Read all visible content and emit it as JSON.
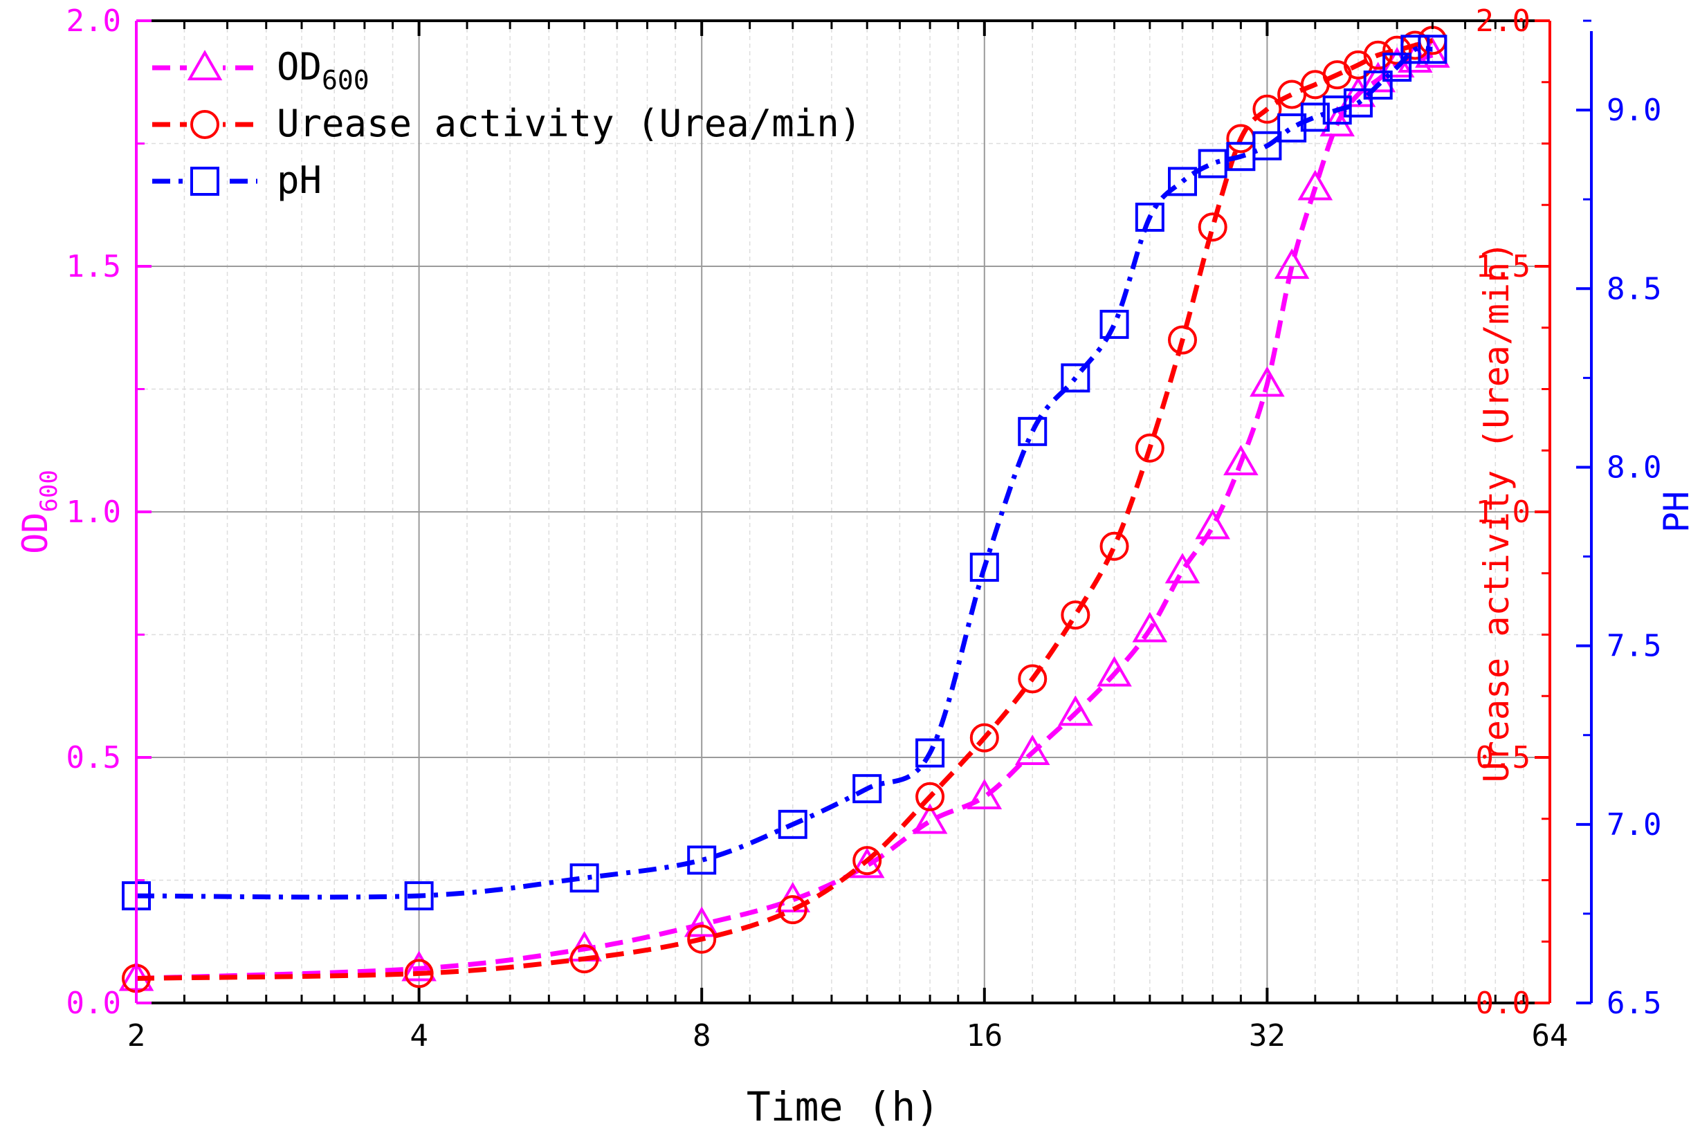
{
  "chart_data": {
    "type": "line",
    "x_scale": "log2",
    "xlabel": "Time (h)",
    "xlim": [
      2,
      64
    ],
    "x_ticks": [
      2,
      4,
      8,
      16,
      32,
      64
    ],
    "x_tick_labels": [
      "2",
      "4",
      "8",
      "16",
      "32",
      "64"
    ],
    "y_left": {
      "label": "OD",
      "label_sub": "600",
      "lim": [
        0,
        2
      ],
      "ticks": [
        0,
        0.5,
        1,
        1.5,
        2
      ],
      "tick_labels": [
        "0.0",
        "0.5",
        "1.0",
        "1.5",
        "2.0"
      ],
      "color": "#ff00ff"
    },
    "y_right1": {
      "label": "Urease activity (Urea/min)",
      "lim": [
        0,
        2
      ],
      "ticks": [
        0,
        0.5,
        1,
        1.5,
        2
      ],
      "tick_labels": [
        "0.0",
        "0.5",
        "1.0",
        "1.5",
        "2.0"
      ],
      "color": "#ff0000"
    },
    "y_right2": {
      "label": "PH",
      "lim": [
        6.5,
        9.25
      ],
      "ticks": [
        6.5,
        7,
        7.5,
        8,
        8.5,
        9
      ],
      "tick_labels": [
        "6.5",
        "7.0",
        "7.5",
        "8.0",
        "8.5",
        "9.0"
      ],
      "color": "#0000ff"
    },
    "grid": true,
    "legend_position": "top-left",
    "series": [
      {
        "name": "OD",
        "name_sub": "600",
        "axis": "y_left",
        "color": "#ff00ff",
        "marker": "triangle",
        "dash": "long-dash",
        "x": [
          2,
          4,
          6,
          8,
          10,
          12,
          14,
          16,
          18,
          20,
          22,
          24,
          26,
          28,
          30,
          32,
          34,
          36,
          38,
          40,
          42,
          44,
          46,
          48
        ],
        "y": [
          0.05,
          0.07,
          0.11,
          0.16,
          0.21,
          0.28,
          0.37,
          0.42,
          0.51,
          0.59,
          0.67,
          0.76,
          0.88,
          0.97,
          1.1,
          1.26,
          1.5,
          1.66,
          1.79,
          1.85,
          1.88,
          1.91,
          1.92,
          1.93
        ]
      },
      {
        "name": "Urease activity (Urea/min)",
        "axis": "y_right1",
        "color": "#ff0000",
        "marker": "circle",
        "dash": "long-dash",
        "x": [
          2,
          4,
          6,
          8,
          10,
          12,
          14,
          16,
          18,
          20,
          22,
          24,
          26,
          28,
          30,
          32,
          34,
          36,
          38,
          40,
          42,
          44,
          46,
          48
        ],
        "y": [
          0.05,
          0.06,
          0.09,
          0.13,
          0.19,
          0.29,
          0.42,
          0.54,
          0.66,
          0.79,
          0.93,
          1.13,
          1.35,
          1.58,
          1.76,
          1.82,
          1.85,
          1.87,
          1.89,
          1.91,
          1.93,
          1.94,
          1.95,
          1.96
        ]
      },
      {
        "name": "pH",
        "axis": "y_right2",
        "color": "#0000ff",
        "marker": "square",
        "dash": "dash-dot",
        "x": [
          2,
          4,
          6,
          8,
          10,
          12,
          14,
          16,
          18,
          20,
          22,
          24,
          26,
          28,
          30,
          32,
          34,
          36,
          38,
          40,
          42,
          44,
          46,
          48
        ],
        "y": [
          6.8,
          6.8,
          6.85,
          6.9,
          7.0,
          7.1,
          7.2,
          7.72,
          8.1,
          8.25,
          8.4,
          8.7,
          8.8,
          8.85,
          8.87,
          8.9,
          8.95,
          8.98,
          9.0,
          9.02,
          9.07,
          9.12,
          9.17,
          9.17
        ]
      }
    ]
  }
}
